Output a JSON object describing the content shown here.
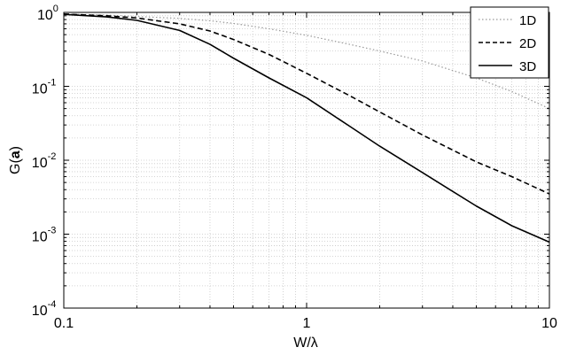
{
  "chart_data": {
    "type": "line",
    "xlabel": "W/λ",
    "ylabel": "G(a)",
    "ylabel_prefix": "G(",
    "ylabel_bold": "a",
    "ylabel_suffix": ")",
    "xscale": "log",
    "yscale": "log",
    "xlim": [
      0.1,
      10
    ],
    "ylim": [
      0.0001,
      1
    ],
    "grid": true,
    "legend_position": "top-right",
    "x_ticks": [
      {
        "value": 0.1,
        "label": "0.1"
      },
      {
        "value": 1,
        "label": "1"
      },
      {
        "value": 10,
        "label": "10"
      }
    ],
    "y_ticks": [
      {
        "value": 1,
        "base": "10",
        "exp": "0"
      },
      {
        "value": 0.1,
        "base": "10",
        "exp": "-1"
      },
      {
        "value": 0.01,
        "base": "10",
        "exp": "-2"
      },
      {
        "value": 0.001,
        "base": "10",
        "exp": "-3"
      },
      {
        "value": 0.0001,
        "base": "10",
        "exp": "-4"
      }
    ],
    "series": [
      {
        "name": "1D",
        "style": "dotted",
        "color": "#999999",
        "x": [
          0.1,
          0.15,
          0.2,
          0.3,
          0.4,
          0.5,
          0.7,
          1,
          1.5,
          2,
          3,
          5,
          7,
          10
        ],
        "y": [
          0.95,
          0.92,
          0.88,
          0.83,
          0.77,
          0.71,
          0.6,
          0.49,
          0.37,
          0.3,
          0.22,
          0.13,
          0.085,
          0.05
        ]
      },
      {
        "name": "2D",
        "style": "dashed",
        "color": "#000000",
        "x": [
          0.1,
          0.15,
          0.2,
          0.3,
          0.4,
          0.5,
          0.7,
          1,
          1.5,
          2,
          3,
          5,
          7,
          10
        ],
        "y": [
          0.95,
          0.9,
          0.84,
          0.7,
          0.56,
          0.43,
          0.27,
          0.15,
          0.075,
          0.045,
          0.022,
          0.0095,
          0.006,
          0.0035
        ]
      },
      {
        "name": "3D",
        "style": "solid",
        "color": "#000000",
        "x": [
          0.1,
          0.15,
          0.2,
          0.3,
          0.4,
          0.5,
          0.7,
          1,
          1.5,
          2,
          3,
          5,
          7,
          10
        ],
        "y": [
          0.94,
          0.87,
          0.78,
          0.57,
          0.37,
          0.24,
          0.13,
          0.07,
          0.029,
          0.0155,
          0.0068,
          0.0024,
          0.0013,
          0.00078
        ]
      }
    ]
  }
}
